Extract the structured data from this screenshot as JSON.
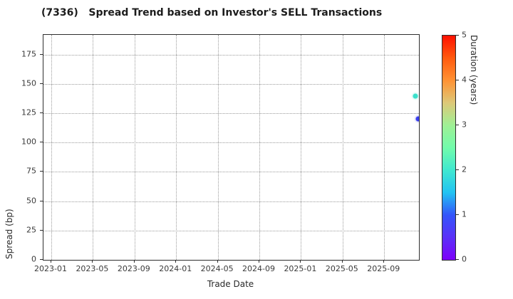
{
  "chart_data": {
    "type": "scatter",
    "title": "(7336)   Spread Trend based on Investor's SELL Transactions",
    "xlabel": "Trade Date",
    "ylabel": "Spread (bp)",
    "grid": true,
    "x_axis": {
      "range": [
        2022.937,
        2025.945
      ],
      "ticks": [
        {
          "label": "2023-01",
          "value": 2023.0
        },
        {
          "label": "2023-05",
          "value": 2023.3333
        },
        {
          "label": "2023-09",
          "value": 2023.6667
        },
        {
          "label": "2024-01",
          "value": 2024.0
        },
        {
          "label": "2024-05",
          "value": 2024.3333
        },
        {
          "label": "2024-09",
          "value": 2024.6667
        },
        {
          "label": "2025-01",
          "value": 2025.0
        },
        {
          "label": "2025-05",
          "value": 2025.3333
        },
        {
          "label": "2025-09",
          "value": 2025.6667
        }
      ]
    },
    "y_axis": {
      "range": [
        0,
        191.7
      ],
      "ticks": [
        0,
        25,
        50,
        75,
        100,
        125,
        150,
        175
      ]
    },
    "colorbar": {
      "label": "Duration (years)",
      "range": [
        0,
        5
      ],
      "ticks": [
        0,
        1,
        2,
        3,
        4,
        5
      ],
      "colormap": "rainbow",
      "stops": [
        {
          "pos": 0.0,
          "color": "#7d00fa"
        },
        {
          "pos": 0.1,
          "color": "#5a30f8"
        },
        {
          "pos": 0.2,
          "color": "#3355fa"
        },
        {
          "pos": 0.3,
          "color": "#22c3f2"
        },
        {
          "pos": 0.4,
          "color": "#40e8d0"
        },
        {
          "pos": 0.5,
          "color": "#72fcab"
        },
        {
          "pos": 0.6,
          "color": "#9ff095"
        },
        {
          "pos": 0.7,
          "color": "#ddc878"
        },
        {
          "pos": 0.8,
          "color": "#ff9234"
        },
        {
          "pos": 0.9,
          "color": "#ff5a0e"
        },
        {
          "pos": 1.0,
          "color": "#fe1000"
        }
      ]
    },
    "points": [
      {
        "x": 2025.914,
        "date_approx": "2025-12",
        "spread_bp": 139.8,
        "duration_years": 2.1,
        "color": "#3be0cb"
      },
      {
        "x": 2025.942,
        "date_approx": "2025-12",
        "spread_bp": 120.4,
        "duration_years": 0.8,
        "color": "#3a3ff0"
      }
    ]
  }
}
